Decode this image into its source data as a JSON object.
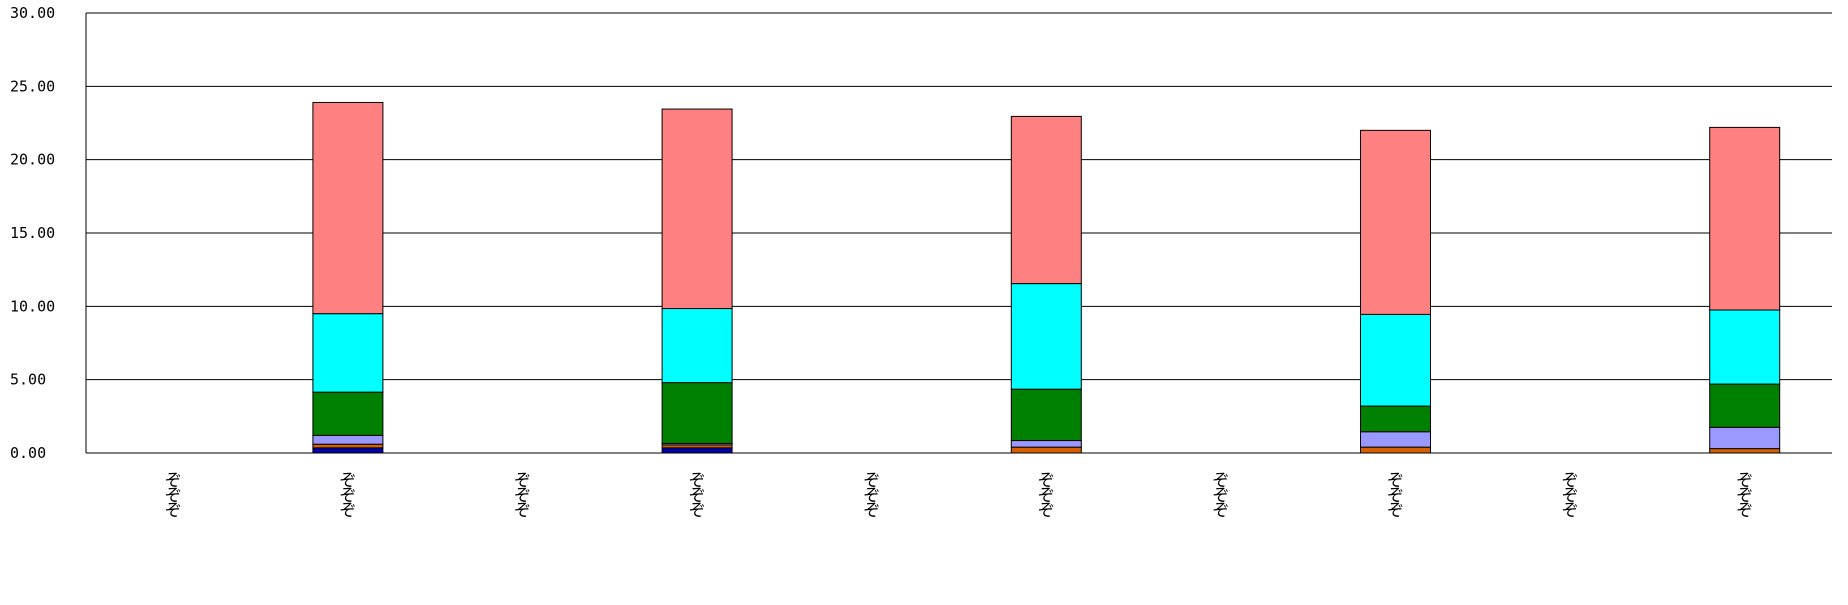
{
  "chart_data": {
    "type": "bar",
    "stacked": true,
    "title": "",
    "xlabel": "",
    "ylabel": "",
    "ylim": [
      0,
      30
    ],
    "yticks": [
      "0.00",
      "5.00",
      "10.00",
      "15.00",
      "20.00",
      "25.00",
      "30.00"
    ],
    "grid": true,
    "legend": "none",
    "categories": [
      "ぞぞぞ",
      "ぞぞぞ",
      "ぞぞぞ",
      "ぞぞぞ",
      "ぞぞぞ",
      "ぞぞぞ",
      "ぞぞぞ",
      "ぞぞぞ",
      "ぞぞぞ",
      "ぞぞぞ"
    ],
    "series": [
      {
        "color": "#0000AA",
        "values": [
          0,
          0.35,
          0,
          0.35,
          0,
          0,
          0,
          0,
          0,
          0
        ]
      },
      {
        "color": "#D65F00",
        "values": [
          0,
          0.25,
          0,
          0.2,
          0,
          0.4,
          0,
          0.4,
          0,
          0.3
        ]
      },
      {
        "color": "#9999FF",
        "values": [
          0,
          0.6,
          0,
          0.1,
          0,
          0.45,
          0,
          1.05,
          0,
          1.45
        ]
      },
      {
        "color": "#008000",
        "values": [
          0,
          2.95,
          0,
          4.15,
          0,
          3.5,
          0,
          1.75,
          0,
          2.95
        ]
      },
      {
        "color": "#00FFFF",
        "values": [
          0,
          5.35,
          0,
          5.05,
          0,
          7.2,
          0,
          6.25,
          0,
          5.05
        ]
      },
      {
        "color": "#FF8080",
        "values": [
          0,
          14.4,
          0,
          13.6,
          0,
          11.4,
          0,
          12.55,
          0,
          12.45
        ]
      }
    ]
  }
}
